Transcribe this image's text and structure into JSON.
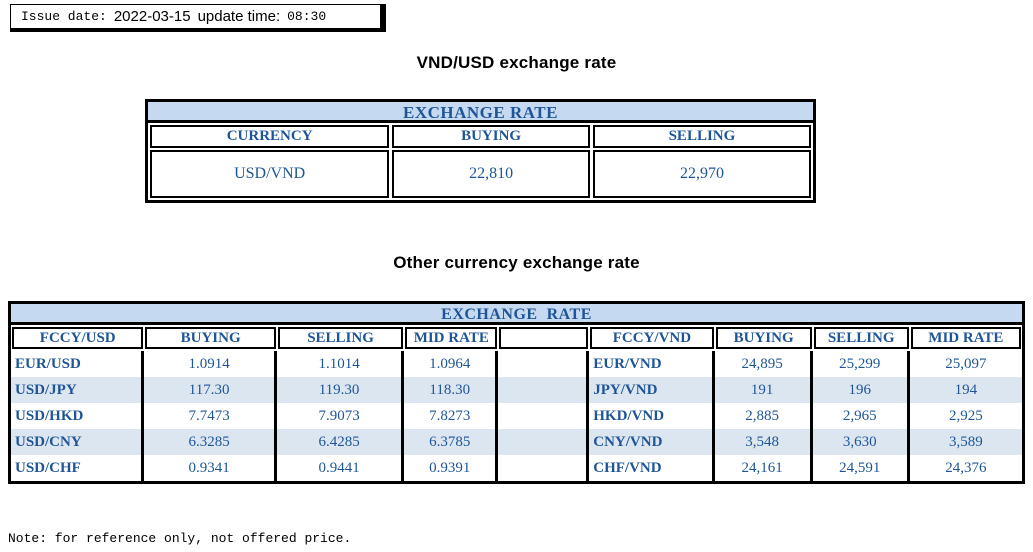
{
  "issue_bar": {
    "issue_label": "Issue date:",
    "issue_date": "2022-03-15",
    "update_label": "update time:",
    "update_time": "08:30"
  },
  "section1": {
    "title": "VND/USD exchange rate",
    "table": {
      "header": "EXCHANGE RATE",
      "columns": [
        "CURRENCY",
        "BUYING",
        "SELLING"
      ],
      "row": [
        "USD/VND",
        "22,810",
        "22,970"
      ]
    }
  },
  "section2": {
    "title": "Other currency exchange rate",
    "table": {
      "header": "EXCHANGE  RATE",
      "columns": [
        "FCCY/USD",
        "BUYING",
        "SELLING",
        "MID RATE",
        "",
        "FCCY/VND",
        "BUYING",
        "SELLING",
        "MID RATE"
      ],
      "rows": [
        [
          "EUR/USD",
          "1.0914",
          "1.1014",
          "1.0964",
          "",
          "EUR/VND",
          "24,895",
          "25,299",
          "25,097"
        ],
        [
          "USD/JPY",
          "117.30",
          "119.30",
          "118.30",
          "",
          "JPY/VND",
          "191",
          "196",
          "194"
        ],
        [
          "USD/HKD",
          "7.7473",
          "7.9073",
          "7.8273",
          "",
          "HKD/VND",
          "2,885",
          "2,965",
          "2,925"
        ],
        [
          "USD/CNY",
          "6.3285",
          "6.4285",
          "6.3785",
          "",
          "CNY/VND",
          "3,548",
          "3,630",
          "3,589"
        ],
        [
          "USD/CHF",
          "0.9341",
          "0.9441",
          "0.9391",
          "",
          "CHF/VND",
          "24,161",
          "24,591",
          "24,376"
        ]
      ]
    }
  },
  "note": "Note: for reference only, not offered price.",
  "colors": {
    "header_band_bg": "#c5d9f1",
    "row_stripe_bg": "#dce6f1",
    "table_text_blue": "#1f5596",
    "border_black": "#000000"
  }
}
